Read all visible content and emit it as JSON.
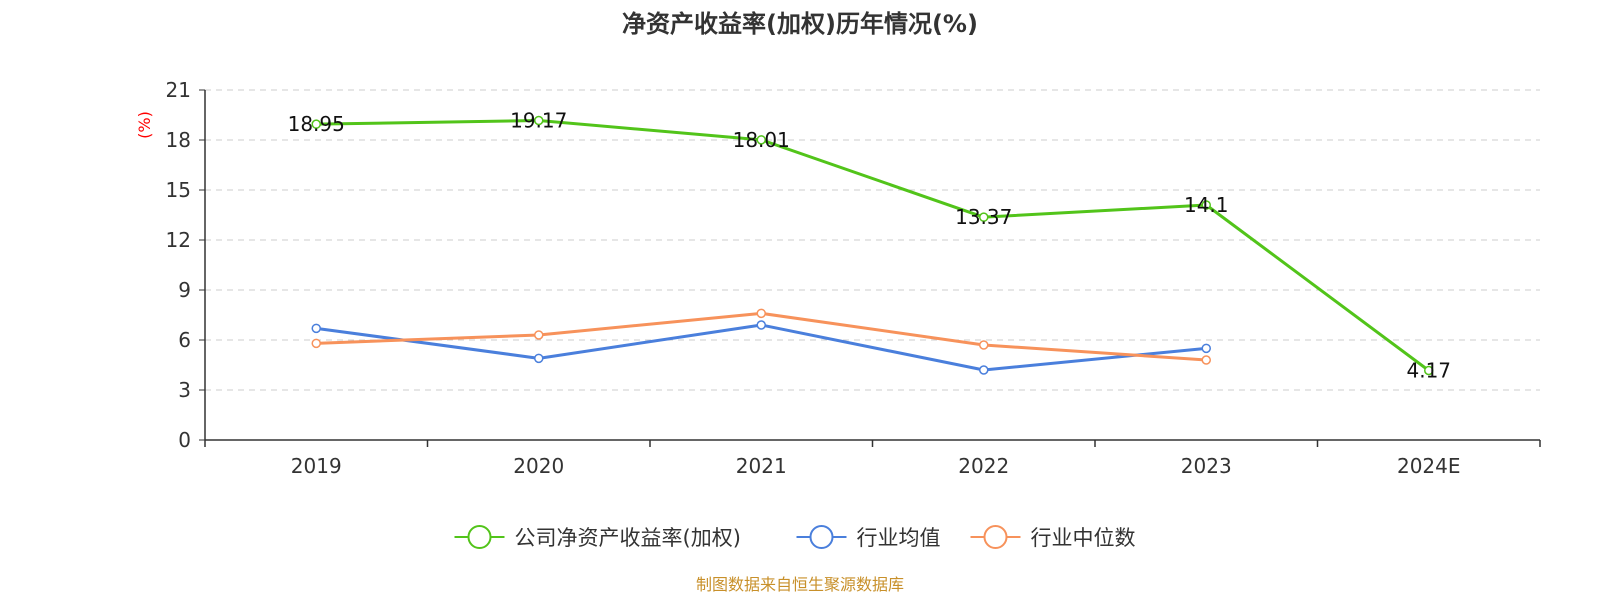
{
  "chart_data": {
    "type": "line",
    "title": "净资产收益率(加权)历年情况(%)",
    "ylabel": "(%)",
    "xlabel": "",
    "categories": [
      "2019",
      "2020",
      "2021",
      "2022",
      "2023",
      "2024E"
    ],
    "ylim": [
      0,
      21
    ],
    "yticks": [
      0,
      3,
      6,
      9,
      12,
      15,
      18,
      21
    ],
    "grid": true,
    "legend_position": "bottom",
    "series": [
      {
        "name": "公司净资产收益率(加权)",
        "color": "#52c41a",
        "values": [
          18.95,
          19.17,
          18.01,
          13.37,
          14.1,
          4.17
        ],
        "labels": [
          "18.95",
          "19.17",
          "18.01",
          "13.37",
          "14.1",
          "4.17"
        ]
      },
      {
        "name": "行业均值",
        "color": "#4a7fdc",
        "values": [
          6.7,
          4.9,
          6.9,
          4.2,
          5.5,
          null
        ]
      },
      {
        "name": "行业中位数",
        "color": "#f7925b",
        "values": [
          5.8,
          6.3,
          7.6,
          5.7,
          4.8,
          null
        ]
      }
    ],
    "source": "制图数据来自恒生聚源数据库",
    "ylabel_color": "#ff0000",
    "source_color": "#c8902a"
  }
}
